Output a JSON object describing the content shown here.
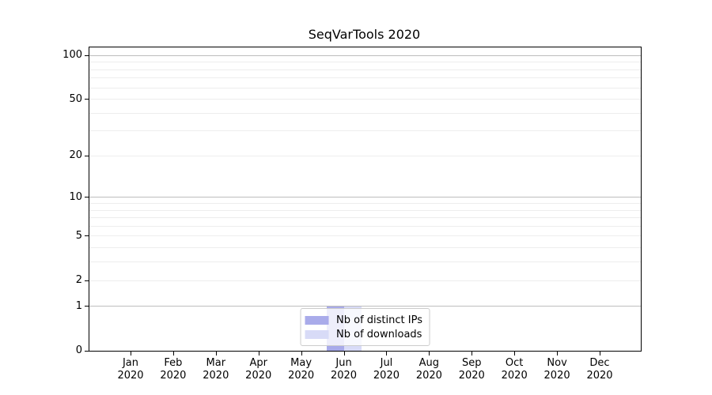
{
  "title": "SeqVarTools 2020",
  "chart_data": {
    "type": "bar",
    "title": "SeqVarTools 2020",
    "xlabel": "",
    "ylabel": "",
    "year": "2020",
    "categories": [
      "Jan",
      "Feb",
      "Mar",
      "Apr",
      "May",
      "Jun",
      "Jul",
      "Aug",
      "Sep",
      "Oct",
      "Nov",
      "Dec"
    ],
    "series": [
      {
        "name": "Nb of distinct IPs",
        "color": "#a9abea",
        "values": [
          0,
          0,
          0,
          0,
          0,
          1,
          0,
          0,
          0,
          0,
          0,
          0
        ]
      },
      {
        "name": "Nb of downloads",
        "color": "#d8dbf7",
        "values": [
          0,
          0,
          0,
          0,
          0,
          1,
          0,
          0,
          0,
          0,
          0,
          0
        ]
      }
    ],
    "yscale": "log1p",
    "y_top_value": 113.6,
    "ytick_values": [
      0,
      1,
      2,
      5,
      10,
      20,
      50,
      100
    ],
    "y_major_gridlines": [
      1,
      10,
      100
    ],
    "y_minor_gridlines": [
      2,
      3,
      4,
      5,
      6,
      7,
      8,
      9,
      20,
      30,
      40,
      50,
      60,
      70,
      80,
      90
    ],
    "legend_position": "lower center",
    "grid": true,
    "theme": {
      "background": "#ffffff",
      "axis_color": "#000000",
      "grid_minor_color": "#ededed",
      "grid_major_color": "#bdbdbd",
      "legend_border_color": "#cccccc",
      "text_color": "#000000"
    }
  }
}
